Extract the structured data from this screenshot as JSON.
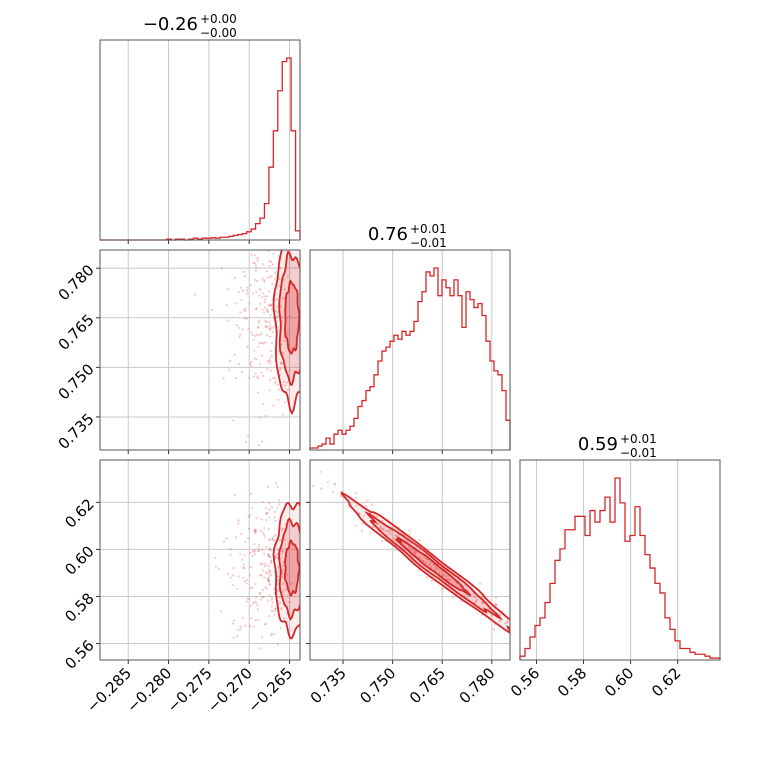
{
  "chart_data": {
    "type": "corner",
    "color": "#d62728",
    "grid": true,
    "parameters": [
      {
        "title_median": "−0.26",
        "title_plus": "+0.00",
        "title_minus": "−0.00",
        "range": [
          -0.2885,
          -0.2637
        ],
        "ticks": [
          "−0.285",
          "−0.280",
          "−0.275",
          "−0.270",
          "−0.265"
        ],
        "tick_values": [
          -0.285,
          -0.28,
          -0.275,
          -0.27,
          -0.265
        ],
        "hist": [
          0,
          0,
          0,
          0,
          0,
          0,
          0,
          0,
          0,
          0,
          0,
          0,
          0,
          0,
          0,
          0.005,
          0,
          0.005,
          0.005,
          0,
          0.005,
          0.01,
          0.005,
          0.01,
          0.01,
          0.012,
          0.01,
          0.015,
          0.015,
          0.02,
          0.025,
          0.03,
          0.035,
          0.045,
          0.06,
          0.09,
          0.12,
          0.2,
          0.4,
          0.6,
          0.82,
          0.98,
          1.0,
          0.6,
          0.05
        ]
      },
      {
        "title_median": "0.76",
        "title_plus": "+0.01",
        "title_minus": "−0.01",
        "range": [
          0.725,
          0.7855
        ],
        "ticks": [
          "0.735",
          "0.750",
          "0.765",
          "0.780"
        ],
        "tick_values": [
          0.735,
          0.75,
          0.765,
          0.78
        ],
        "hist": [
          0.01,
          0.01,
          0.02,
          0.03,
          0.06,
          0.03,
          0.08,
          0.1,
          0.08,
          0.1,
          0.12,
          0.16,
          0.22,
          0.25,
          0.3,
          0.32,
          0.38,
          0.45,
          0.5,
          0.52,
          0.55,
          0.58,
          0.56,
          0.6,
          0.58,
          0.6,
          0.65,
          0.75,
          0.8,
          0.9,
          0.88,
          0.92,
          0.78,
          0.86,
          0.82,
          0.78,
          0.86,
          0.78,
          0.62,
          0.8,
          0.76,
          0.72,
          0.74,
          0.68,
          0.55,
          0.45,
          0.4,
          0.38,
          0.3,
          0.15
        ]
      },
      {
        "title_median": "0.59",
        "title_plus": "+0.01",
        "title_minus": "−0.01",
        "range": [
          0.553,
          0.638
        ],
        "ticks": [
          "0.56",
          "0.58",
          "0.60",
          "0.62"
        ],
        "tick_values": [
          0.56,
          0.58,
          0.6,
          0.62
        ],
        "hist": [
          0.02,
          0.06,
          0.12,
          0.18,
          0.22,
          0.3,
          0.4,
          0.52,
          0.58,
          0.68,
          0.68,
          0.75,
          0.75,
          0.65,
          0.78,
          0.72,
          0.78,
          0.85,
          0.72,
          0.95,
          0.82,
          0.62,
          0.65,
          0.8,
          0.65,
          0.55,
          0.48,
          0.4,
          0.35,
          0.22,
          0.16,
          0.1,
          0.06,
          0.06,
          0.04,
          0.03,
          0.03,
          0.02,
          0.01,
          0.01
        ]
      }
    ],
    "pairs": [
      {
        "x_param": 0,
        "y_param": 1,
        "cx": -0.2647,
        "cy": 0.765,
        "sx": 0.00085,
        "sy": 0.0105,
        "rho": 0.0,
        "levels": [
          1.0,
          1.8,
          2.5
        ],
        "fills": [
          0.55,
          0.35,
          0.18
        ]
      },
      {
        "x_param": 0,
        "y_param": 2,
        "cx": -0.2647,
        "cy": 0.592,
        "sx": 0.00085,
        "sy": 0.011,
        "rho": 0.0,
        "levels": [
          1.0,
          1.8,
          2.5
        ],
        "fills": [
          0.55,
          0.35,
          0.18
        ]
      },
      {
        "x_param": 1,
        "y_param": 2,
        "cx": 0.762,
        "cy": 0.593,
        "sx": 0.0105,
        "sy": 0.0115,
        "rho": -0.985,
        "levels": [
          1.0,
          1.8,
          2.5
        ],
        "fills": [
          0.55,
          0.35,
          0.18
        ]
      }
    ]
  }
}
